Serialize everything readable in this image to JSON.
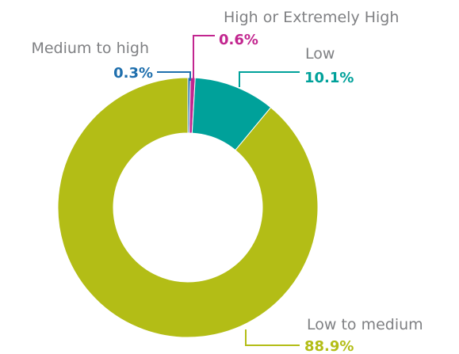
{
  "chart_data": {
    "type": "pie",
    "donut": true,
    "title": "",
    "legend": "none",
    "slices": [
      {
        "name": "Medium to high",
        "value": 0.3,
        "label": "0.3%",
        "color": "#1f6fad"
      },
      {
        "name": "High or Extremely High",
        "value": 0.6,
        "label": "0.6%",
        "color": "#c2268f"
      },
      {
        "name": "Low",
        "value": 10.1,
        "label": "10.1%",
        "color": "#00a19a"
      },
      {
        "name": "Low to medium",
        "value": 88.9,
        "label": "88.9%",
        "color": "#b3bd16"
      }
    ]
  }
}
